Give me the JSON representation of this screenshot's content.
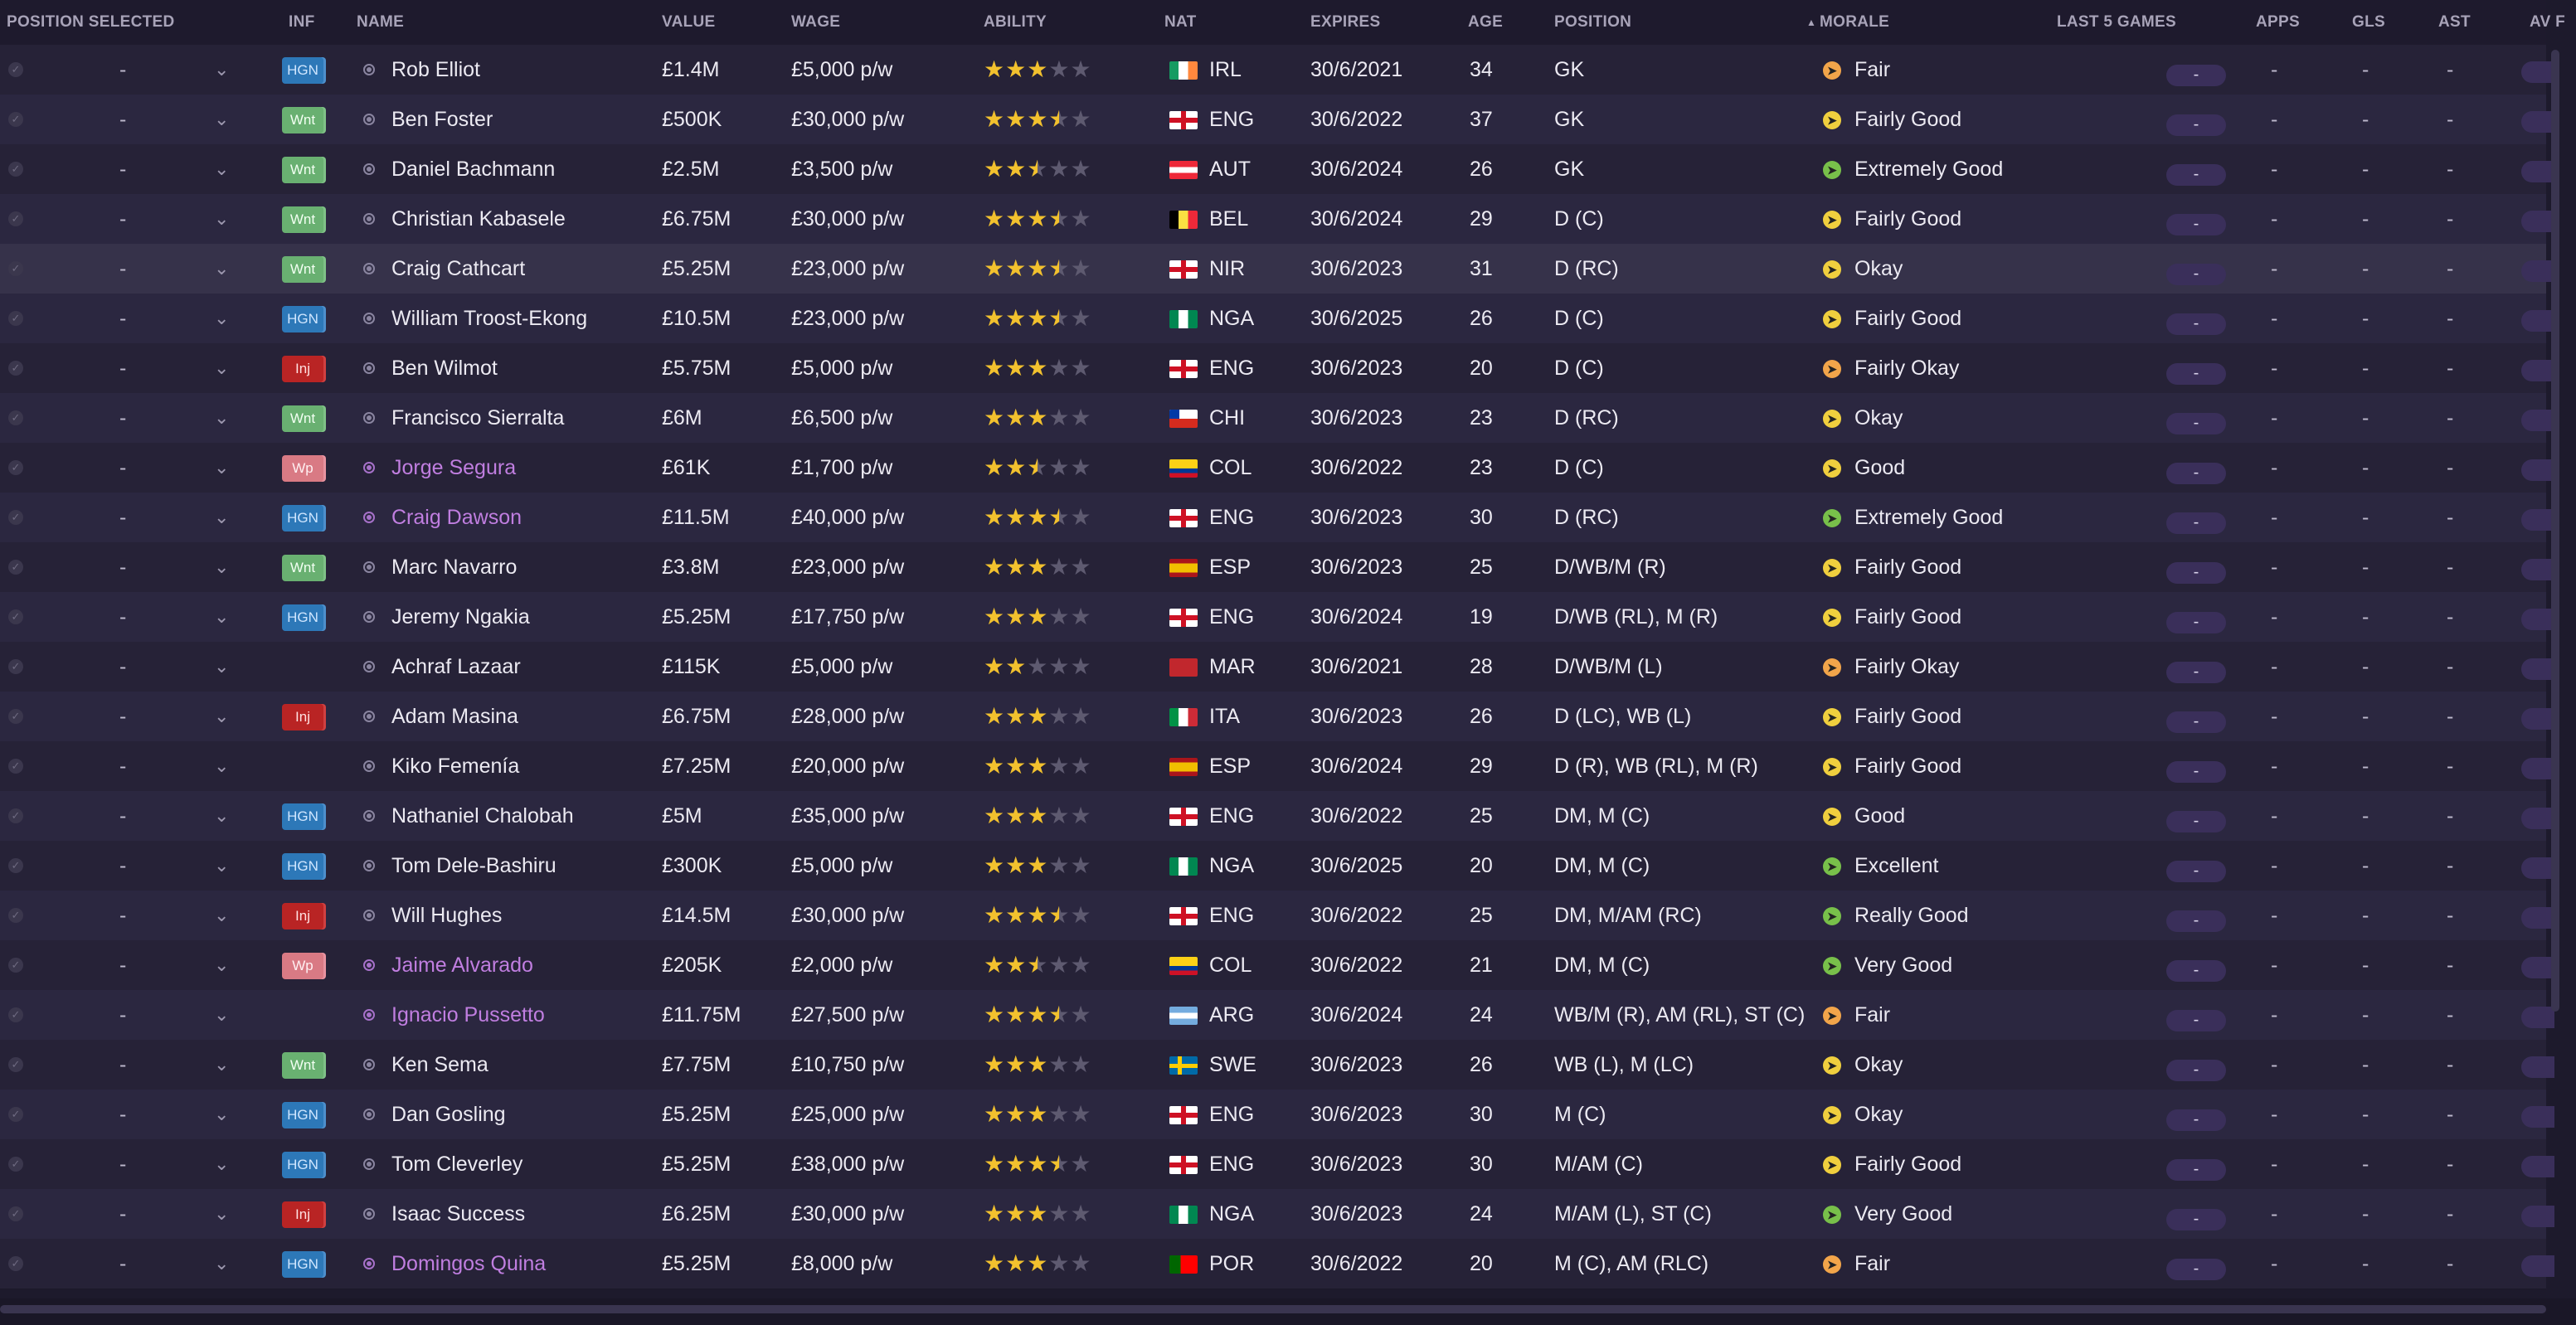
{
  "headers": {
    "position_selected": "POSITION SELECTED",
    "inf": "INF",
    "name": "NAME",
    "value": "VALUE",
    "wage": "WAGE",
    "ability": "ABILITY",
    "nat": "NAT",
    "expires": "EXPIRES",
    "age": "AGE",
    "position": "POSITION",
    "morale": "MORALE",
    "last5": "LAST 5 GAMES",
    "apps": "APPS",
    "gls": "GLS",
    "ast": "AST",
    "av": "AV F"
  },
  "sort_indicator": "▲",
  "colors": {
    "accent_loan": "#c07ee0",
    "star_on": "#f2c12e",
    "badge_hgn": "#2d78b8",
    "badge_wnt": "#69b071",
    "badge_inj": "#b92424",
    "badge_wp": "#d97a84"
  },
  "rows": [
    {
      "sel": "-",
      "inf": "HGN",
      "name": "Rob Elliot",
      "value": "£1.4M",
      "wage": "£5,000 p/w",
      "stars": 3,
      "nat_code": "IRL",
      "flag": "irl",
      "expires": "30/6/2021",
      "age": "34",
      "position": "GK",
      "morale_icon": "orange",
      "morale": "Fair",
      "last5": "-",
      "apps": "-",
      "gls": "-",
      "ast": "-",
      "loan": false
    },
    {
      "sel": "-",
      "inf": "Wnt",
      "name": "Ben Foster",
      "value": "£500K",
      "wage": "£30,000 p/w",
      "stars": 3.5,
      "nat_code": "ENG",
      "flag": "eng",
      "expires": "30/6/2022",
      "age": "37",
      "position": "GK",
      "morale_icon": "yellow",
      "morale": "Fairly Good",
      "last5": "-",
      "apps": "-",
      "gls": "-",
      "ast": "-",
      "loan": false
    },
    {
      "sel": "-",
      "inf": "Wnt",
      "name": "Daniel Bachmann",
      "value": "£2.5M",
      "wage": "£3,500 p/w",
      "stars": 2.5,
      "nat_code": "AUT",
      "flag": "aut",
      "expires": "30/6/2024",
      "age": "26",
      "position": "GK",
      "morale_icon": "green",
      "morale": "Extremely Good",
      "last5": "-",
      "apps": "-",
      "gls": "-",
      "ast": "-",
      "loan": false
    },
    {
      "sel": "-",
      "inf": "Wnt",
      "name": "Christian Kabasele",
      "value": "£6.75M",
      "wage": "£30,000 p/w",
      "stars": 3.5,
      "nat_code": "BEL",
      "flag": "bel",
      "expires": "30/6/2024",
      "age": "29",
      "position": "D (C)",
      "morale_icon": "yellow",
      "morale": "Fairly Good",
      "last5": "-",
      "apps": "-",
      "gls": "-",
      "ast": "-",
      "loan": false
    },
    {
      "sel": "-",
      "inf": "Wnt",
      "name": "Craig Cathcart",
      "value": "£5.25M",
      "wage": "£23,000 p/w",
      "stars": 3.5,
      "nat_code": "NIR",
      "flag": "eng",
      "expires": "30/6/2023",
      "age": "31",
      "position": "D (RC)",
      "morale_icon": "yellow",
      "morale": "Okay",
      "last5": "-",
      "apps": "-",
      "gls": "-",
      "ast": "-",
      "loan": false
    },
    {
      "sel": "-",
      "inf": "HGN",
      "name": "William Troost-Ekong",
      "value": "£10.5M",
      "wage": "£23,000 p/w",
      "stars": 3.5,
      "nat_code": "NGA",
      "flag": "nga",
      "expires": "30/6/2025",
      "age": "26",
      "position": "D (C)",
      "morale_icon": "yellow",
      "morale": "Fairly Good",
      "last5": "-",
      "apps": "-",
      "gls": "-",
      "ast": "-",
      "loan": false
    },
    {
      "sel": "-",
      "inf": "Inj",
      "name": "Ben Wilmot",
      "value": "£5.75M",
      "wage": "£5,000 p/w",
      "stars": 3,
      "nat_code": "ENG",
      "flag": "eng",
      "expires": "30/6/2023",
      "age": "20",
      "position": "D (C)",
      "morale_icon": "orange",
      "morale": "Fairly Okay",
      "last5": "-",
      "apps": "-",
      "gls": "-",
      "ast": "-",
      "loan": false
    },
    {
      "sel": "-",
      "inf": "Wnt",
      "name": "Francisco Sierralta",
      "value": "£6M",
      "wage": "£6,500 p/w",
      "stars": 3,
      "nat_code": "CHI",
      "flag": "chi",
      "expires": "30/6/2023",
      "age": "23",
      "position": "D (RC)",
      "morale_icon": "yellow",
      "morale": "Okay",
      "last5": "-",
      "apps": "-",
      "gls": "-",
      "ast": "-",
      "loan": false
    },
    {
      "sel": "-",
      "inf": "Wp",
      "name": "Jorge Segura",
      "value": "£61K",
      "wage": "£1,700 p/w",
      "stars": 2.5,
      "nat_code": "COL",
      "flag": "col",
      "expires": "30/6/2022",
      "age": "23",
      "position": "D (C)",
      "morale_icon": "yellow",
      "morale": "Good",
      "last5": "-",
      "apps": "-",
      "gls": "-",
      "ast": "-",
      "loan": true
    },
    {
      "sel": "-",
      "inf": "HGN",
      "name": "Craig Dawson",
      "value": "£11.5M",
      "wage": "£40,000 p/w",
      "stars": 3.5,
      "nat_code": "ENG",
      "flag": "eng",
      "expires": "30/6/2023",
      "age": "30",
      "position": "D (RC)",
      "morale_icon": "green",
      "morale": "Extremely Good",
      "last5": "-",
      "apps": "-",
      "gls": "-",
      "ast": "-",
      "loan": true
    },
    {
      "sel": "-",
      "inf": "Wnt",
      "name": "Marc Navarro",
      "value": "£3.8M",
      "wage": "£23,000 p/w",
      "stars": 3,
      "nat_code": "ESP",
      "flag": "esp",
      "expires": "30/6/2023",
      "age": "25",
      "position": "D/WB/M (R)",
      "morale_icon": "yellow",
      "morale": "Fairly Good",
      "last5": "-",
      "apps": "-",
      "gls": "-",
      "ast": "-",
      "loan": false
    },
    {
      "sel": "-",
      "inf": "HGN",
      "name": "Jeremy Ngakia",
      "value": "£5.25M",
      "wage": "£17,750 p/w",
      "stars": 3,
      "nat_code": "ENG",
      "flag": "eng",
      "expires": "30/6/2024",
      "age": "19",
      "position": "D/WB (RL), M (R)",
      "morale_icon": "yellow",
      "morale": "Fairly Good",
      "last5": "-",
      "apps": "-",
      "gls": "-",
      "ast": "-",
      "loan": false
    },
    {
      "sel": "-",
      "inf": "",
      "name": "Achraf Lazaar",
      "value": "£115K",
      "wage": "£5,000 p/w",
      "stars": 2,
      "nat_code": "MAR",
      "flag": "mar",
      "expires": "30/6/2021",
      "age": "28",
      "position": "D/WB/M (L)",
      "morale_icon": "orange",
      "morale": "Fairly Okay",
      "last5": "-",
      "apps": "-",
      "gls": "-",
      "ast": "-",
      "loan": false
    },
    {
      "sel": "-",
      "inf": "Inj",
      "name": "Adam Masina",
      "value": "£6.75M",
      "wage": "£28,000 p/w",
      "stars": 3,
      "nat_code": "ITA",
      "flag": "ita",
      "expires": "30/6/2023",
      "age": "26",
      "position": "D (LC), WB (L)",
      "morale_icon": "yellow",
      "morale": "Fairly Good",
      "last5": "-",
      "apps": "-",
      "gls": "-",
      "ast": "-",
      "loan": false
    },
    {
      "sel": "-",
      "inf": "",
      "name": "Kiko Femenía",
      "value": "£7.25M",
      "wage": "£20,000 p/w",
      "stars": 3,
      "nat_code": "ESP",
      "flag": "esp",
      "expires": "30/6/2024",
      "age": "29",
      "position": "D (R), WB (RL), M (R)",
      "morale_icon": "yellow",
      "morale": "Fairly Good",
      "last5": "-",
      "apps": "-",
      "gls": "-",
      "ast": "-",
      "loan": false
    },
    {
      "sel": "-",
      "inf": "HGN",
      "name": "Nathaniel Chalobah",
      "value": "£5M",
      "wage": "£35,000 p/w",
      "stars": 3,
      "nat_code": "ENG",
      "flag": "eng",
      "expires": "30/6/2022",
      "age": "25",
      "position": "DM, M (C)",
      "morale_icon": "yellow",
      "morale": "Good",
      "last5": "-",
      "apps": "-",
      "gls": "-",
      "ast": "-",
      "loan": false
    },
    {
      "sel": "-",
      "inf": "HGN",
      "name": "Tom Dele-Bashiru",
      "value": "£300K",
      "wage": "£5,000 p/w",
      "stars": 3,
      "nat_code": "NGA",
      "flag": "nga",
      "expires": "30/6/2025",
      "age": "20",
      "position": "DM, M (C)",
      "morale_icon": "green",
      "morale": "Excellent",
      "last5": "-",
      "apps": "-",
      "gls": "-",
      "ast": "-",
      "loan": false
    },
    {
      "sel": "-",
      "inf": "Inj",
      "name": "Will Hughes",
      "value": "£14.5M",
      "wage": "£30,000 p/w",
      "stars": 3.5,
      "nat_code": "ENG",
      "flag": "eng",
      "expires": "30/6/2022",
      "age": "25",
      "position": "DM, M/AM (RC)",
      "morale_icon": "green",
      "morale": "Really Good",
      "last5": "-",
      "apps": "-",
      "gls": "-",
      "ast": "-",
      "loan": false
    },
    {
      "sel": "-",
      "inf": "Wp",
      "name": "Jaime Alvarado",
      "value": "£205K",
      "wage": "£2,000 p/w",
      "stars": 2.5,
      "nat_code": "COL",
      "flag": "col",
      "expires": "30/6/2022",
      "age": "21",
      "position": "DM, M (C)",
      "morale_icon": "green",
      "morale": "Very Good",
      "last5": "-",
      "apps": "-",
      "gls": "-",
      "ast": "-",
      "loan": true
    },
    {
      "sel": "-",
      "inf": "",
      "name": "Ignacio Pussetto",
      "value": "£11.75M",
      "wage": "£27,500 p/w",
      "stars": 3.5,
      "nat_code": "ARG",
      "flag": "arg",
      "expires": "30/6/2024",
      "age": "24",
      "position": "WB/M (R), AM (RL), ST (C)",
      "morale_icon": "orange",
      "morale": "Fair",
      "last5": "-",
      "apps": "-",
      "gls": "-",
      "ast": "-",
      "loan": true
    },
    {
      "sel": "-",
      "inf": "Wnt",
      "name": "Ken Sema",
      "value": "£7.75M",
      "wage": "£10,750 p/w",
      "stars": 3,
      "nat_code": "SWE",
      "flag": "swe",
      "expires": "30/6/2023",
      "age": "26",
      "position": "WB (L), M (LC)",
      "morale_icon": "yellow",
      "morale": "Okay",
      "last5": "-",
      "apps": "-",
      "gls": "-",
      "ast": "-",
      "loan": false
    },
    {
      "sel": "-",
      "inf": "HGN",
      "name": "Dan Gosling",
      "value": "£5.25M",
      "wage": "£25,000 p/w",
      "stars": 3,
      "nat_code": "ENG",
      "flag": "eng",
      "expires": "30/6/2023",
      "age": "30",
      "position": "M (C)",
      "morale_icon": "yellow",
      "morale": "Okay",
      "last5": "-",
      "apps": "-",
      "gls": "-",
      "ast": "-",
      "loan": false
    },
    {
      "sel": "-",
      "inf": "HGN",
      "name": "Tom Cleverley",
      "value": "£5.25M",
      "wage": "£38,000 p/w",
      "stars": 3.5,
      "nat_code": "ENG",
      "flag": "eng",
      "expires": "30/6/2023",
      "age": "30",
      "position": "M/AM (C)",
      "morale_icon": "yellow",
      "morale": "Fairly Good",
      "last5": "-",
      "apps": "-",
      "gls": "-",
      "ast": "-",
      "loan": false
    },
    {
      "sel": "-",
      "inf": "Inj",
      "name": "Isaac Success",
      "value": "£6.25M",
      "wage": "£30,000 p/w",
      "stars": 3,
      "nat_code": "NGA",
      "flag": "nga",
      "expires": "30/6/2023",
      "age": "24",
      "position": "M/AM (L), ST (C)",
      "morale_icon": "green",
      "morale": "Very Good",
      "last5": "-",
      "apps": "-",
      "gls": "-",
      "ast": "-",
      "loan": false
    },
    {
      "sel": "-",
      "inf": "HGN",
      "name": "Domingos Quina",
      "value": "£5.25M",
      "wage": "£8,000 p/w",
      "stars": 3,
      "nat_code": "POR",
      "flag": "por",
      "expires": "30/6/2022",
      "age": "20",
      "position": "M (C), AM (RLC)",
      "morale_icon": "orange",
      "morale": "Fair",
      "last5": "-",
      "apps": "-",
      "gls": "-",
      "ast": "-",
      "loan": true
    }
  ]
}
